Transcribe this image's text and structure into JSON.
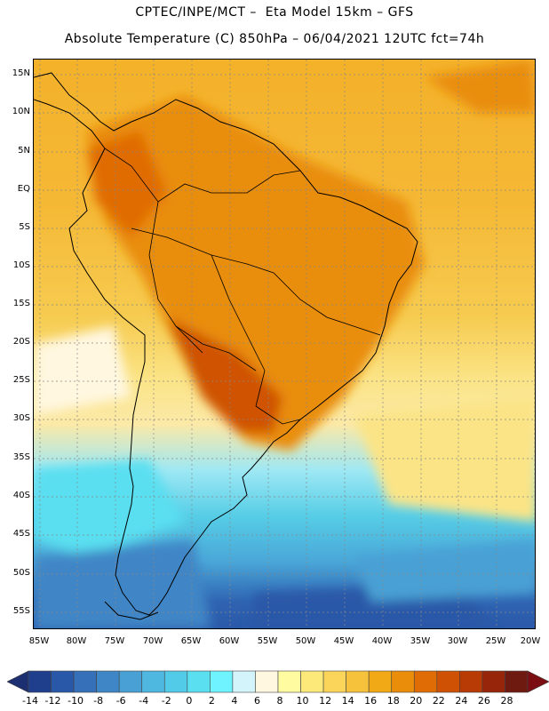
{
  "title_line1": "CPTEC/INPE/MCT –  Eta Model 15km – GFS",
  "title_line2": "Absolute Temperature (C) 850hPa – 06/04/2021 12UTC fct=74h",
  "lat_labels": [
    "15N",
    "10N",
    "5N",
    "EQ",
    "5S",
    "10S",
    "15S",
    "20S",
    "25S",
    "30S",
    "35S",
    "40S",
    "45S",
    "50S",
    "55S"
  ],
  "lon_labels": [
    "85W",
    "80W",
    "75W",
    "70W",
    "65W",
    "60W",
    "55W",
    "50W",
    "45W",
    "40W",
    "35W",
    "30W",
    "25W",
    "20W"
  ],
  "colorbar": {
    "labels": [
      "-14",
      "-12",
      "-10",
      "-8",
      "-6",
      "-4",
      "-2",
      "0",
      "2",
      "4",
      "6",
      "8",
      "10",
      "12",
      "14",
      "16",
      "18",
      "20",
      "22",
      "24",
      "26",
      "28"
    ],
    "colors": [
      "#1f3f8c",
      "#2a58a8",
      "#3570b8",
      "#3f86c6",
      "#49a0d4",
      "#4fb8e0",
      "#52cbe8",
      "#5adff0",
      "#6ff3ff",
      "#d4f4fb",
      "#fff7e0",
      "#fffba0",
      "#fce97a",
      "#fbd559",
      "#f6c13b",
      "#f2a916",
      "#e98d0a",
      "#e06c06",
      "#cf5204",
      "#b83a04",
      "#97250a",
      "#6f1a10"
    ],
    "under_color": "#1c2f70",
    "over_color": "#7a0e12"
  }
}
